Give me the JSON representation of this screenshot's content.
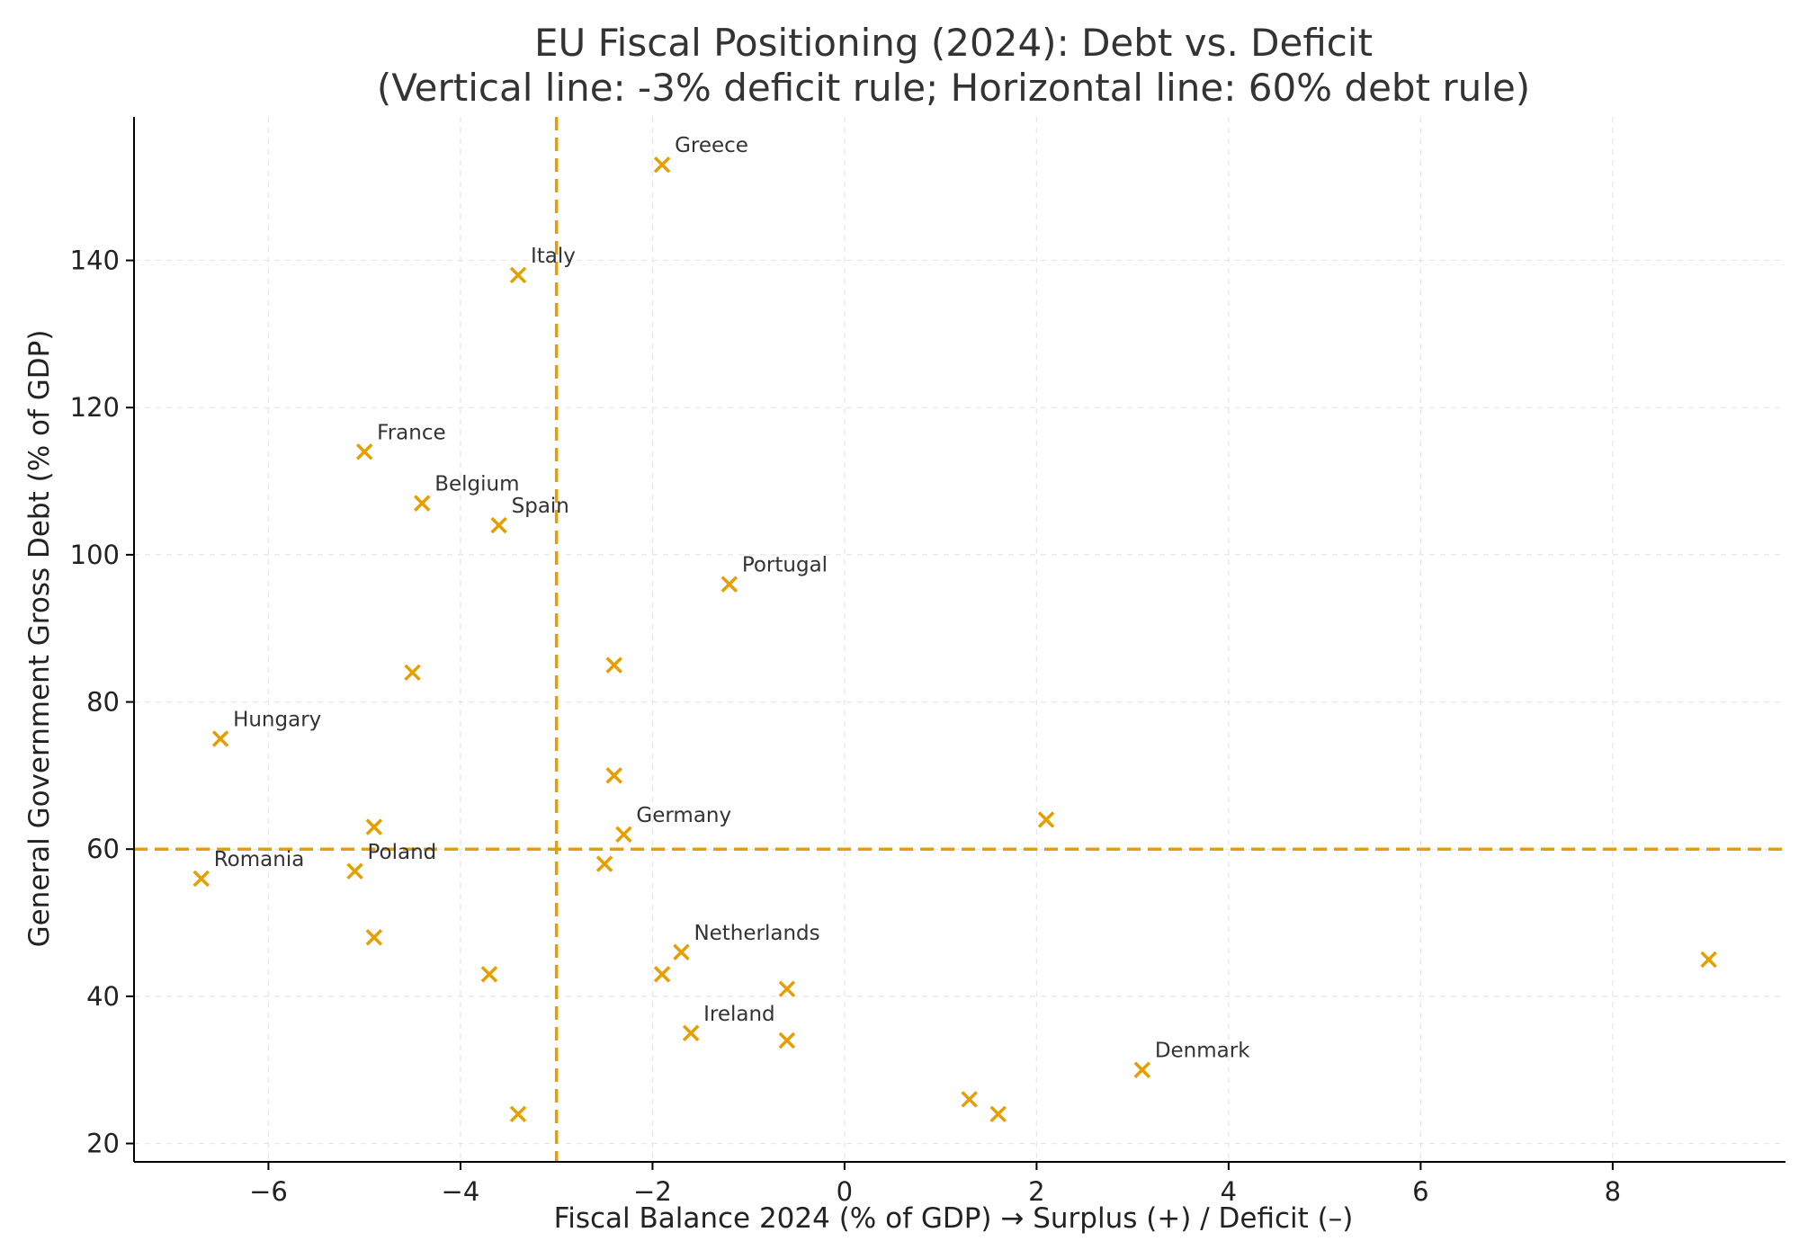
{
  "chart_data": {
    "type": "scatter",
    "title": "EU Fiscal Positioning (2024): Debt vs. Deficit",
    "subtitle": "(Vertical line: -3% deficit rule; Horizontal line: 60% debt rule)",
    "xlabel": "Fiscal Balance 2024 (% of GDP)  →  Surplus (+) / Deficit (–)",
    "ylabel": "General Government Gross Debt (% of GDP)",
    "xlim": [
      -7.4,
      9.8
    ],
    "ylim": [
      17.5,
      159.5
    ],
    "xticks": [
      -6,
      -4,
      -2,
      0,
      2,
      4,
      6,
      8
    ],
    "xtick_labels": [
      "−6",
      "−4",
      "−2",
      "0",
      "2",
      "4",
      "6",
      "8"
    ],
    "yticks": [
      20,
      40,
      60,
      80,
      100,
      120,
      140
    ],
    "ytick_labels": [
      "20",
      "40",
      "60",
      "80",
      "100",
      "120",
      "140"
    ],
    "grid": true,
    "marker": "x",
    "color": "#E69F00",
    "reference_lines": {
      "deficit_rule_x": -3,
      "debt_rule_y": 60
    },
    "points": [
      {
        "x": -1.9,
        "y": 153,
        "label": "Greece"
      },
      {
        "x": -3.4,
        "y": 138,
        "label": "Italy"
      },
      {
        "x": -5.0,
        "y": 114,
        "label": "France"
      },
      {
        "x": -4.4,
        "y": 107,
        "label": "Belgium"
      },
      {
        "x": -3.6,
        "y": 104,
        "label": "Spain"
      },
      {
        "x": -1.2,
        "y": 96,
        "label": "Portugal"
      },
      {
        "x": -4.5,
        "y": 84,
        "label": ""
      },
      {
        "x": -2.4,
        "y": 85,
        "label": ""
      },
      {
        "x": -6.5,
        "y": 75,
        "label": "Hungary"
      },
      {
        "x": -2.4,
        "y": 70,
        "label": ""
      },
      {
        "x": -4.9,
        "y": 63,
        "label": ""
      },
      {
        "x": -2.3,
        "y": 62,
        "label": "Germany"
      },
      {
        "x": 2.1,
        "y": 64,
        "label": ""
      },
      {
        "x": -5.1,
        "y": 57,
        "label": "Poland"
      },
      {
        "x": -6.7,
        "y": 56,
        "label": "Romania"
      },
      {
        "x": -2.5,
        "y": 58,
        "label": ""
      },
      {
        "x": -4.9,
        "y": 48,
        "label": ""
      },
      {
        "x": -3.7,
        "y": 43,
        "label": ""
      },
      {
        "x": -1.9,
        "y": 43,
        "label": ""
      },
      {
        "x": -1.7,
        "y": 46,
        "label": "Netherlands"
      },
      {
        "x": -0.6,
        "y": 41,
        "label": ""
      },
      {
        "x": -1.6,
        "y": 35,
        "label": "Ireland"
      },
      {
        "x": -0.6,
        "y": 34,
        "label": ""
      },
      {
        "x": 9.0,
        "y": 45,
        "label": ""
      },
      {
        "x": 3.1,
        "y": 30,
        "label": "Denmark"
      },
      {
        "x": 1.3,
        "y": 26,
        "label": ""
      },
      {
        "x": 1.6,
        "y": 24,
        "label": ""
      },
      {
        "x": -3.4,
        "y": 24,
        "label": ""
      }
    ]
  }
}
